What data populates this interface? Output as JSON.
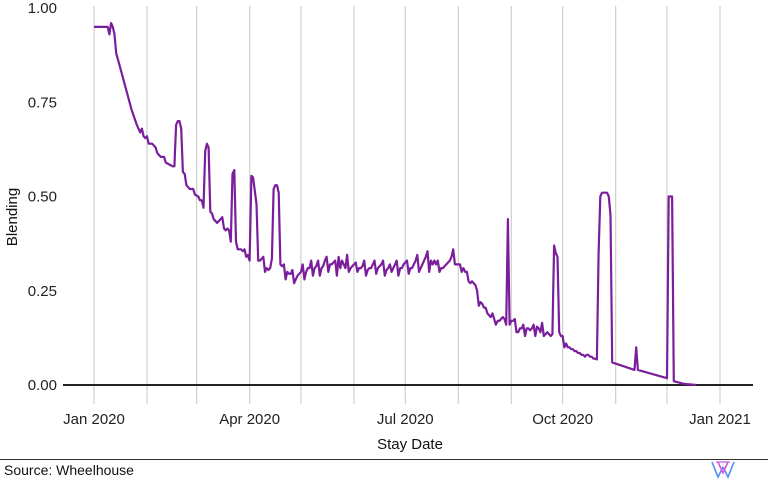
{
  "chart_data": {
    "type": "line",
    "title": "",
    "xlabel": "Stay Date",
    "ylabel": "Blending",
    "ylim": [
      0,
      1
    ],
    "yticks": [
      0.0,
      0.25,
      0.5,
      0.75,
      1.0
    ],
    "ytick_labels": [
      "0.00",
      "0.25",
      "0.50",
      "0.75",
      "1.00"
    ],
    "x_range_days": [
      0,
      366
    ],
    "x_origin": "2020-01-01",
    "xtick_labels": [
      {
        "day": 0,
        "label": "Jan 2020"
      },
      {
        "day": 91,
        "label": "Apr 2020"
      },
      {
        "day": 182,
        "label": "Jul 2020"
      },
      {
        "day": 274,
        "label": "Oct 2020"
      },
      {
        "day": 366,
        "label": "Jan 2021"
      }
    ],
    "vertical_gridlines_days": [
      0,
      31,
      60,
      91,
      121,
      152,
      182,
      213,
      244,
      274,
      305,
      335,
      366
    ],
    "grid": "vertical-only",
    "legend": "none",
    "line_color": "#7a1e9c",
    "series": [
      {
        "name": "Blending",
        "points": [
          [
            0,
            0.95
          ],
          [
            6,
            0.95
          ],
          [
            8,
            0.95
          ],
          [
            9,
            0.93
          ],
          [
            10,
            0.96
          ],
          [
            11,
            0.95
          ],
          [
            12,
            0.93
          ],
          [
            13,
            0.88
          ],
          [
            16,
            0.83
          ],
          [
            19,
            0.78
          ],
          [
            22,
            0.73
          ],
          [
            25,
            0.69
          ],
          [
            27,
            0.67
          ],
          [
            28,
            0.68
          ],
          [
            29,
            0.66
          ],
          [
            30,
            0.655
          ],
          [
            31,
            0.66
          ],
          [
            32,
            0.64
          ],
          [
            34,
            0.64
          ],
          [
            36,
            0.63
          ],
          [
            37,
            0.615
          ],
          [
            39,
            0.605
          ],
          [
            41,
            0.605
          ],
          [
            42,
            0.59
          ],
          [
            44,
            0.585
          ],
          [
            46,
            0.58
          ],
          [
            47,
            0.58
          ],
          [
            48,
            0.69
          ],
          [
            49,
            0.7
          ],
          [
            50,
            0.7
          ],
          [
            51,
            0.68
          ],
          [
            52,
            0.565
          ],
          [
            53,
            0.56
          ],
          [
            54,
            0.53
          ],
          [
            56,
            0.52
          ],
          [
            58,
            0.52
          ],
          [
            59,
            0.505
          ],
          [
            61,
            0.5
          ],
          [
            62,
            0.49
          ],
          [
            63,
            0.49
          ],
          [
            64,
            0.47
          ],
          [
            65,
            0.62
          ],
          [
            66,
            0.64
          ],
          [
            67,
            0.63
          ],
          [
            68,
            0.46
          ],
          [
            69,
            0.455
          ],
          [
            70,
            0.44
          ],
          [
            72,
            0.43
          ],
          [
            74,
            0.44
          ],
          [
            75,
            0.445
          ],
          [
            76,
            0.415
          ],
          [
            77,
            0.41
          ],
          [
            78,
            0.415
          ],
          [
            79,
            0.41
          ],
          [
            80,
            0.38
          ],
          [
            81,
            0.56
          ],
          [
            82,
            0.57
          ],
          [
            83,
            0.38
          ],
          [
            84,
            0.36
          ],
          [
            86,
            0.36
          ],
          [
            87,
            0.355
          ],
          [
            88,
            0.36
          ],
          [
            89,
            0.34
          ],
          [
            90,
            0.345
          ],
          [
            91,
            0.33
          ],
          [
            92,
            0.555
          ],
          [
            93,
            0.55
          ],
          [
            95,
            0.48
          ],
          [
            96,
            0.33
          ],
          [
            97,
            0.33
          ],
          [
            99,
            0.34
          ],
          [
            100,
            0.3
          ],
          [
            101,
            0.31
          ],
          [
            102,
            0.305
          ],
          [
            103,
            0.31
          ],
          [
            104,
            0.335
          ],
          [
            105,
            0.52
          ],
          [
            106,
            0.53
          ],
          [
            107,
            0.53
          ],
          [
            108,
            0.51
          ],
          [
            109,
            0.32
          ],
          [
            110,
            0.315
          ],
          [
            111,
            0.32
          ],
          [
            112,
            0.28
          ],
          [
            113,
            0.3
          ],
          [
            114,
            0.295
          ],
          [
            115,
            0.295
          ],
          [
            116,
            0.305
          ],
          [
            117,
            0.27
          ],
          [
            119,
            0.29
          ],
          [
            120,
            0.295
          ],
          [
            121,
            0.3
          ],
          [
            122,
            0.32
          ],
          [
            123,
            0.28
          ],
          [
            124,
            0.3
          ],
          [
            125,
            0.31
          ],
          [
            126,
            0.31
          ],
          [
            127,
            0.33
          ],
          [
            128,
            0.29
          ],
          [
            129,
            0.31
          ],
          [
            130,
            0.315
          ],
          [
            131,
            0.33
          ],
          [
            132,
            0.29
          ],
          [
            133,
            0.31
          ],
          [
            134,
            0.315
          ],
          [
            135,
            0.33
          ],
          [
            136,
            0.34
          ],
          [
            137,
            0.3
          ],
          [
            138,
            0.32
          ],
          [
            139,
            0.32
          ],
          [
            140,
            0.325
          ],
          [
            141,
            0.33
          ],
          [
            142,
            0.29
          ],
          [
            143,
            0.34
          ],
          [
            144,
            0.31
          ],
          [
            145,
            0.33
          ],
          [
            146,
            0.32
          ],
          [
            147,
            0.31
          ],
          [
            148,
            0.345
          ],
          [
            149,
            0.3
          ],
          [
            150,
            0.31
          ],
          [
            151,
            0.315
          ],
          [
            152,
            0.32
          ],
          [
            153,
            0.325
          ],
          [
            154,
            0.3
          ],
          [
            155,
            0.31
          ],
          [
            156,
            0.31
          ],
          [
            157,
            0.315
          ],
          [
            158,
            0.33
          ],
          [
            159,
            0.29
          ],
          [
            160,
            0.305
          ],
          [
            161,
            0.31
          ],
          [
            162,
            0.31
          ],
          [
            163,
            0.32
          ],
          [
            164,
            0.33
          ],
          [
            165,
            0.295
          ],
          [
            166,
            0.31
          ],
          [
            167,
            0.315
          ],
          [
            168,
            0.32
          ],
          [
            169,
            0.33
          ],
          [
            170,
            0.29
          ],
          [
            171,
            0.305
          ],
          [
            172,
            0.31
          ],
          [
            173,
            0.32
          ],
          [
            174,
            0.3
          ],
          [
            175,
            0.31
          ],
          [
            176,
            0.32
          ],
          [
            177,
            0.33
          ],
          [
            178,
            0.29
          ],
          [
            179,
            0.31
          ],
          [
            180,
            0.31
          ],
          [
            181,
            0.32
          ],
          [
            182,
            0.325
          ],
          [
            183,
            0.33
          ],
          [
            184,
            0.295
          ],
          [
            185,
            0.31
          ],
          [
            186,
            0.31
          ],
          [
            187,
            0.32
          ],
          [
            188,
            0.33
          ],
          [
            189,
            0.345
          ],
          [
            190,
            0.3
          ],
          [
            191,
            0.31
          ],
          [
            192,
            0.32
          ],
          [
            193,
            0.33
          ],
          [
            194,
            0.34
          ],
          [
            195,
            0.355
          ],
          [
            196,
            0.3
          ],
          [
            197,
            0.33
          ],
          [
            198,
            0.32
          ],
          [
            199,
            0.33
          ],
          [
            200,
            0.32
          ],
          [
            201,
            0.33
          ],
          [
            202,
            0.3
          ],
          [
            203,
            0.31
          ],
          [
            204,
            0.31
          ],
          [
            205,
            0.315
          ],
          [
            206,
            0.32
          ],
          [
            207,
            0.325
          ],
          [
            208,
            0.33
          ],
          [
            209,
            0.34
          ],
          [
            210,
            0.36
          ],
          [
            211,
            0.32
          ],
          [
            212,
            0.32
          ],
          [
            213,
            0.32
          ],
          [
            214,
            0.32
          ],
          [
            215,
            0.3
          ],
          [
            216,
            0.31
          ],
          [
            217,
            0.3
          ],
          [
            218,
            0.3
          ],
          [
            219,
            0.275
          ],
          [
            220,
            0.27
          ],
          [
            221,
            0.275
          ],
          [
            222,
            0.27
          ],
          [
            223,
            0.265
          ],
          [
            224,
            0.25
          ],
          [
            225,
            0.21
          ],
          [
            226,
            0.22
          ],
          [
            227,
            0.215
          ],
          [
            228,
            0.205
          ],
          [
            229,
            0.205
          ],
          [
            230,
            0.19
          ],
          [
            231,
            0.185
          ],
          [
            232,
            0.18
          ],
          [
            233,
            0.19
          ],
          [
            234,
            0.175
          ],
          [
            235,
            0.16
          ],
          [
            236,
            0.17
          ],
          [
            237,
            0.17
          ],
          [
            238,
            0.175
          ],
          [
            239,
            0.18
          ],
          [
            240,
            0.175
          ],
          [
            241,
            0.16
          ],
          [
            242,
            0.44
          ],
          [
            243,
            0.16
          ],
          [
            244,
            0.17
          ],
          [
            245,
            0.17
          ],
          [
            246,
            0.175
          ],
          [
            247,
            0.14
          ],
          [
            248,
            0.14
          ],
          [
            249,
            0.15
          ],
          [
            250,
            0.15
          ],
          [
            251,
            0.16
          ],
          [
            252,
            0.13
          ],
          [
            253,
            0.15
          ],
          [
            254,
            0.15
          ],
          [
            255,
            0.145
          ],
          [
            256,
            0.15
          ],
          [
            257,
            0.16
          ],
          [
            258,
            0.13
          ],
          [
            259,
            0.155
          ],
          [
            260,
            0.15
          ],
          [
            261,
            0.14
          ],
          [
            262,
            0.165
          ],
          [
            263,
            0.13
          ],
          [
            264,
            0.135
          ],
          [
            265,
            0.14
          ],
          [
            266,
            0.135
          ],
          [
            267,
            0.13
          ],
          [
            268,
            0.135
          ],
          [
            269,
            0.37
          ],
          [
            270,
            0.35
          ],
          [
            271,
            0.34
          ],
          [
            272,
            0.14
          ],
          [
            273,
            0.13
          ],
          [
            274,
            0.13
          ],
          [
            275,
            0.1
          ],
          [
            276,
            0.11
          ],
          [
            277,
            0.1
          ],
          [
            278,
            0.1
          ],
          [
            279,
            0.095
          ],
          [
            280,
            0.095
          ],
          [
            281,
            0.09
          ],
          [
            282,
            0.09
          ],
          [
            283,
            0.085
          ],
          [
            284,
            0.085
          ],
          [
            285,
            0.08
          ],
          [
            286,
            0.08
          ],
          [
            287,
            0.075
          ],
          [
            288,
            0.08
          ],
          [
            289,
            0.08
          ],
          [
            290,
            0.075
          ],
          [
            291,
            0.075
          ],
          [
            292,
            0.07
          ],
          [
            293,
            0.07
          ],
          [
            294,
            0.068
          ],
          [
            295,
            0.35
          ],
          [
            296,
            0.5
          ],
          [
            297,
            0.51
          ],
          [
            300,
            0.51
          ],
          [
            301,
            0.5
          ],
          [
            302,
            0.45
          ],
          [
            303,
            0.06
          ],
          [
            316,
            0.04
          ],
          [
            317,
            0.1
          ],
          [
            318,
            0.04
          ],
          [
            335,
            0.018
          ],
          [
            336,
            0.5
          ],
          [
            338,
            0.5
          ],
          [
            339,
            0.01
          ],
          [
            345,
            0.003
          ],
          [
            352,
            0.0
          ]
        ]
      }
    ]
  },
  "footer": {
    "source": "Source: Wheelhouse",
    "logo": "wheelhouse-w-logo"
  }
}
